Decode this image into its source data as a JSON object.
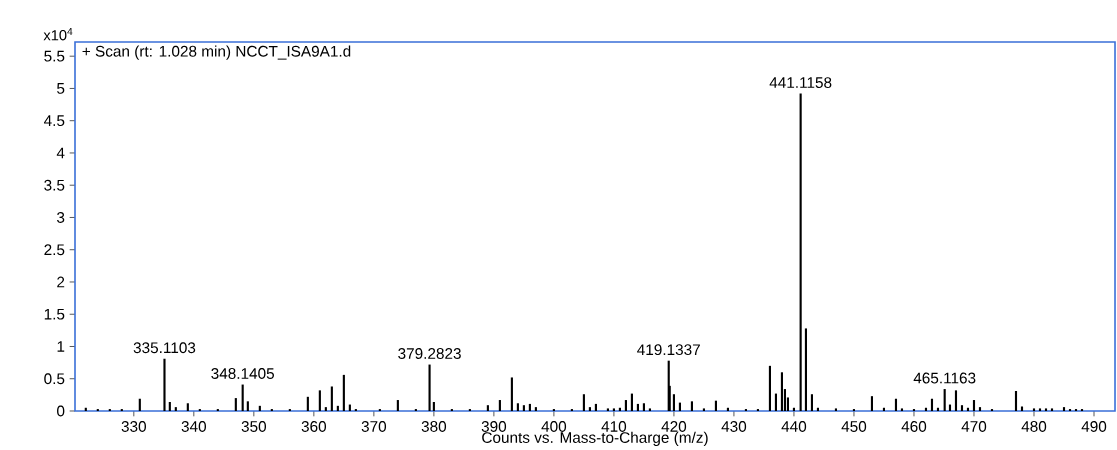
{
  "chart_data": {
    "type": "bar",
    "title": "+ Scan (rt: 1.028 min) NCCT_ISA9A1.d",
    "xlabel": "Counts vs. Mass-to-Charge (m/z)",
    "ylabel": "x10$^{4}$",
    "x": [
      322,
      324,
      326,
      328,
      331,
      335.1103,
      336,
      337,
      339,
      341,
      344,
      347,
      348.1405,
      349,
      351,
      353,
      356,
      359,
      361,
      362,
      363,
      364,
      365,
      366,
      367,
      371,
      374,
      377,
      379.2823,
      380,
      383,
      386,
      389,
      391,
      393,
      394,
      395,
      396,
      397,
      400,
      403,
      405,
      406,
      407,
      409,
      410,
      411,
      412,
      413,
      414,
      415,
      416,
      419.1337,
      419.3,
      420,
      421,
      423,
      425,
      427,
      429,
      432,
      434,
      436,
      437,
      438,
      438.5,
      439,
      440,
      441.1158,
      442,
      443,
      444,
      447,
      450,
      453,
      455,
      457,
      458,
      460,
      462,
      463,
      464,
      465.1163,
      466,
      467,
      468,
      469,
      470,
      471,
      473,
      477,
      478,
      480,
      481,
      482,
      483,
      485,
      486,
      487,
      488
    ],
    "values": [
      0.05,
      0.03,
      0.03,
      0.03,
      0.19,
      0.81,
      0.14,
      0.06,
      0.12,
      0.03,
      0.03,
      0.2,
      0.41,
      0.15,
      0.08,
      0.03,
      0.03,
      0.22,
      0.32,
      0.06,
      0.38,
      0.08,
      0.56,
      0.1,
      0.03,
      0.03,
      0.17,
      0.03,
      0.72,
      0.14,
      0.03,
      0.03,
      0.09,
      0.17,
      0.52,
      0.12,
      0.09,
      0.11,
      0.06,
      0.03,
      0.03,
      0.26,
      0.06,
      0.11,
      0.04,
      0.04,
      0.05,
      0.17,
      0.27,
      0.11,
      0.12,
      0.04,
      0.78,
      0.39,
      0.26,
      0.13,
      0.15,
      0.04,
      0.16,
      0.05,
      0.03,
      0.03,
      0.7,
      0.27,
      0.6,
      0.34,
      0.21,
      0.05,
      4.92,
      1.28,
      0.26,
      0.05,
      0.04,
      0.03,
      0.23,
      0.05,
      0.19,
      0.04,
      0.03,
      0.05,
      0.19,
      0.05,
      0.34,
      0.1,
      0.32,
      0.09,
      0.05,
      0.17,
      0.06,
      0.03,
      0.31,
      0.07,
      0.04,
      0.04,
      0.04,
      0.04,
      0.06,
      0.03,
      0.03,
      0.03
    ],
    "color": "#000000",
    "xlim": [
      320.2,
      493.5
    ],
    "ylim": [
      0,
      5.72
    ],
    "xticks": [
      330,
      340,
      350,
      360,
      370,
      380,
      390,
      400,
      410,
      420,
      430,
      440,
      450,
      460,
      470,
      480,
      490
    ],
    "yticks": [
      0,
      0.5,
      1,
      1.5,
      2,
      2.5,
      3,
      3.5,
      4,
      4.5,
      5,
      5.5
    ],
    "annotations": [
      {
        "text": "335.1103",
        "x": 335.1103,
        "y": 0.81
      },
      {
        "text": "348.1405",
        "x": 348.1405,
        "y": 0.41
      },
      {
        "text": "379.2823",
        "x": 379.2823,
        "y": 0.72
      },
      {
        "text": "419.1337",
        "x": 419.1337,
        "y": 0.78
      },
      {
        "text": "441.1158",
        "x": 441.1158,
        "y": 4.92
      },
      {
        "text": "465.1163",
        "x": 465.1163,
        "y": 0.34
      }
    ],
    "grid": false
  }
}
